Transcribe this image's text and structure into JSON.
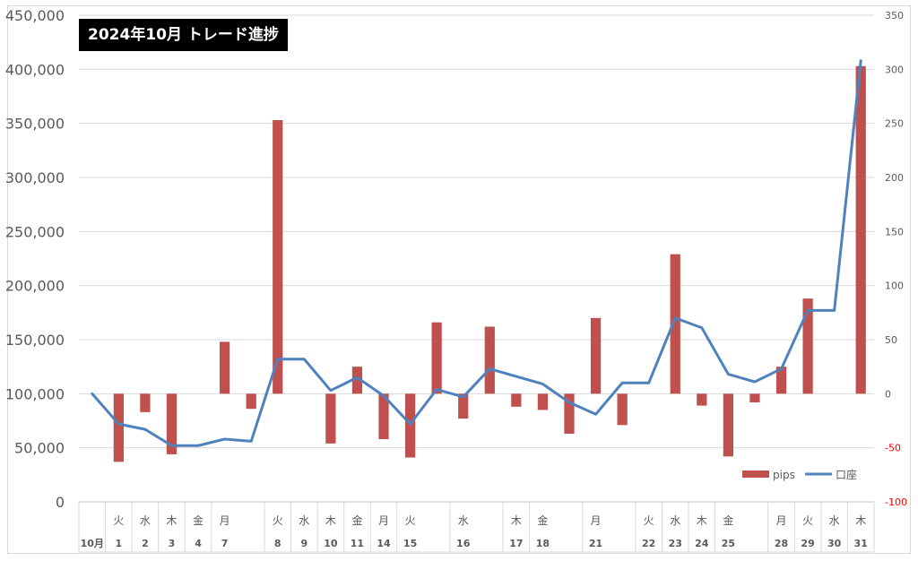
{
  "chart_data": {
    "type": "bar+line",
    "title": "2024年10月 トレード進捗",
    "left_axis": {
      "min": 0,
      "max": 450000,
      "ticks": [
        "0",
        "50,000",
        "100,000",
        "150,000",
        "200,000",
        "250,000",
        "300,000",
        "350,000",
        "400,000",
        "450,000"
      ]
    },
    "right_axis": {
      "min": -100,
      "max": 350,
      "ticks": [
        "-100",
        "-50",
        "0",
        "50",
        "100",
        "150",
        "200",
        "250",
        "300",
        "350"
      ],
      "negative_color": "#ff0000"
    },
    "categories": [
      {
        "day": "",
        "date": "10月"
      },
      {
        "day": "火",
        "date": "1"
      },
      {
        "day": "水",
        "date": "2"
      },
      {
        "day": "木",
        "date": "3"
      },
      {
        "day": "金",
        "date": "4"
      },
      {
        "day": "月",
        "date": "7"
      },
      {
        "day": "",
        "date": ""
      },
      {
        "day": "火",
        "date": "8"
      },
      {
        "day": "水",
        "date": "9"
      },
      {
        "day": "木",
        "date": "10"
      },
      {
        "day": "金",
        "date": "11"
      },
      {
        "day": "月",
        "date": "14"
      },
      {
        "day": "火",
        "date": "15"
      },
      {
        "day": "",
        "date": ""
      },
      {
        "day": "水",
        "date": "16"
      },
      {
        "day": "",
        "date": ""
      },
      {
        "day": "木",
        "date": "17"
      },
      {
        "day": "金",
        "date": "18"
      },
      {
        "day": "",
        "date": ""
      },
      {
        "day": "月",
        "date": "21"
      },
      {
        "day": "",
        "date": ""
      },
      {
        "day": "火",
        "date": "22"
      },
      {
        "day": "水",
        "date": "23"
      },
      {
        "day": "木",
        "date": "24"
      },
      {
        "day": "金",
        "date": "25"
      },
      {
        "day": "",
        "date": ""
      },
      {
        "day": "月",
        "date": "28"
      },
      {
        "day": "火",
        "date": "29"
      },
      {
        "day": "水",
        "date": "30"
      },
      {
        "day": "木",
        "date": "31"
      }
    ],
    "series": [
      {
        "name": "pips",
        "kind": "bar",
        "axis": "right",
        "color": "#c0504d",
        "values": [
          null,
          -63,
          -17,
          -56,
          null,
          48,
          -14,
          253,
          null,
          -46,
          25,
          -42,
          -59,
          66,
          -23,
          62,
          -12,
          -15,
          -37,
          70,
          -29,
          null,
          129,
          -11,
          -58,
          -8,
          25,
          88,
          null,
          303
        ]
      },
      {
        "name": "口座",
        "kind": "line",
        "axis": "left",
        "color": "#4f81bd",
        "values": [
          100000,
          72000,
          67000,
          52000,
          52000,
          58000,
          56000,
          132000,
          132000,
          103000,
          115000,
          98000,
          72000,
          104000,
          97000,
          123000,
          116000,
          109000,
          92000,
          81000,
          110000,
          110000,
          170000,
          161000,
          118000,
          111000,
          123000,
          177000,
          177000,
          408000
        ]
      }
    ],
    "legend": {
      "position": "bottom-right",
      "items": [
        "pips",
        "口座"
      ]
    },
    "grid": true
  }
}
